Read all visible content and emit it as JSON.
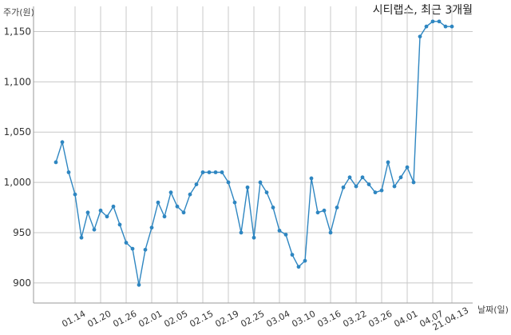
{
  "chart_data": {
    "type": "line",
    "title": "시티랩스, 최근 3개월",
    "ylabel": "주가(원)",
    "xlabel": "날짜(일)",
    "ylim": [
      880,
      1175
    ],
    "yticks": [
      900,
      950,
      1000,
      1050,
      1100,
      1150
    ],
    "ytick_labels": [
      "900",
      "950",
      "1,000",
      "1,050",
      "1,100",
      "1,150"
    ],
    "xtick_labels": [
      "01.14",
      "01.20",
      "01.26",
      "02.01",
      "02.05",
      "02.15",
      "02.19",
      "02.25",
      "03.04",
      "03.10",
      "03.16",
      "03.22",
      "03.26",
      "04.01",
      "04.07",
      "21.04.13"
    ],
    "xtick_index": [
      3,
      7,
      11,
      15,
      19,
      23,
      27,
      31,
      35,
      39,
      43,
      47,
      51,
      55,
      59,
      62
    ],
    "grid": true,
    "color": "#2e86c1",
    "series": [
      {
        "values": [
          1020,
          1040,
          1010,
          988,
          945,
          970,
          953,
          972,
          966,
          976,
          958,
          940,
          934,
          898,
          933,
          955,
          980,
          966,
          990,
          976,
          970,
          988,
          998,
          1010,
          1010,
          1010,
          1010,
          1000,
          980,
          950,
          995,
          945,
          1000,
          990,
          975,
          952,
          948,
          928,
          916,
          922,
          1004,
          970,
          972,
          950,
          975,
          995,
          1005,
          996,
          1005,
          998,
          990,
          992,
          1020,
          996,
          1005,
          1015,
          1000,
          1145,
          1155,
          1160,
          1160,
          1155,
          1155
        ]
      }
    ]
  }
}
